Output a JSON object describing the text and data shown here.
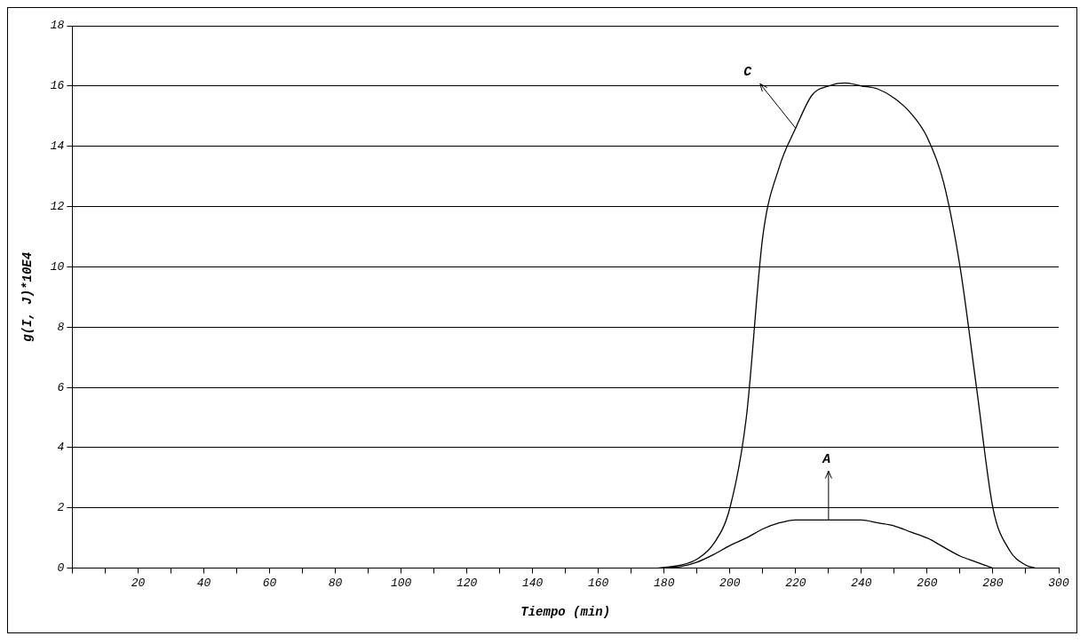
{
  "chart_data": {
    "type": "line",
    "xlabel": "Tiempo (min)",
    "ylabel": "g(I, J)*10E4",
    "xlim": [
      0,
      300
    ],
    "ylim": [
      0,
      18
    ],
    "xticks": [
      {
        "value": 0,
        "label": null
      },
      {
        "value": 10,
        "label": null
      },
      20,
      {
        "value": 30,
        "label": null
      },
      40,
      {
        "value": 50,
        "label": null
      },
      60,
      {
        "value": 70,
        "label": null
      },
      80,
      {
        "value": 90,
        "label": null
      },
      100,
      {
        "value": 110,
        "label": null
      },
      120,
      {
        "value": 130,
        "label": null
      },
      140,
      {
        "value": 150,
        "label": null
      },
      160,
      {
        "value": 170,
        "label": null
      },
      180,
      {
        "value": 190,
        "label": null
      },
      200,
      {
        "value": 210,
        "label": null
      },
      220,
      {
        "value": 230,
        "label": null
      },
      240,
      {
        "value": 250,
        "label": null
      },
      260,
      {
        "value": 270,
        "label": null
      },
      280,
      {
        "value": 290,
        "label": null
      },
      300
    ],
    "yticks": [
      0,
      2,
      4,
      6,
      8,
      10,
      12,
      14,
      16,
      18
    ],
    "grid": "y",
    "legend": false,
    "marker": "none",
    "line_style": "solid",
    "series": [
      {
        "color": "#000000",
        "x": [
          178,
          185,
          190,
          195,
          200,
          205,
          210,
          215,
          220,
          225,
          230,
          235,
          240,
          245,
          250,
          255,
          260,
          265,
          270,
          275,
          280,
          285,
          290,
          293
        ],
        "values": [
          0,
          0.1,
          0.3,
          0.8,
          2,
          5,
          11,
          13.3,
          14.6,
          15.7,
          16,
          16.1,
          16,
          15.9,
          15.6,
          15.1,
          14.3,
          12.8,
          10,
          6,
          2,
          0.6,
          0.1,
          0
        ]
      },
      {
        "color": "#000000",
        "x": [
          180,
          185,
          190,
          195,
          200,
          205,
          210,
          215,
          220,
          225,
          230,
          235,
          240,
          245,
          250,
          255,
          260,
          265,
          270,
          275,
          280
        ],
        "values": [
          0,
          0.05,
          0.2,
          0.45,
          0.75,
          1,
          1.3,
          1.5,
          1.6,
          1.6,
          1.6,
          1.6,
          1.6,
          1.5,
          1.4,
          1.2,
          1,
          0.7,
          0.4,
          0.2,
          0
        ]
      }
    ],
    "annotations": [
      {
        "text": "C",
        "x": 220,
        "y": 14.6
      },
      {
        "text": "A",
        "x": 230,
        "y": 1.6
      }
    ]
  }
}
